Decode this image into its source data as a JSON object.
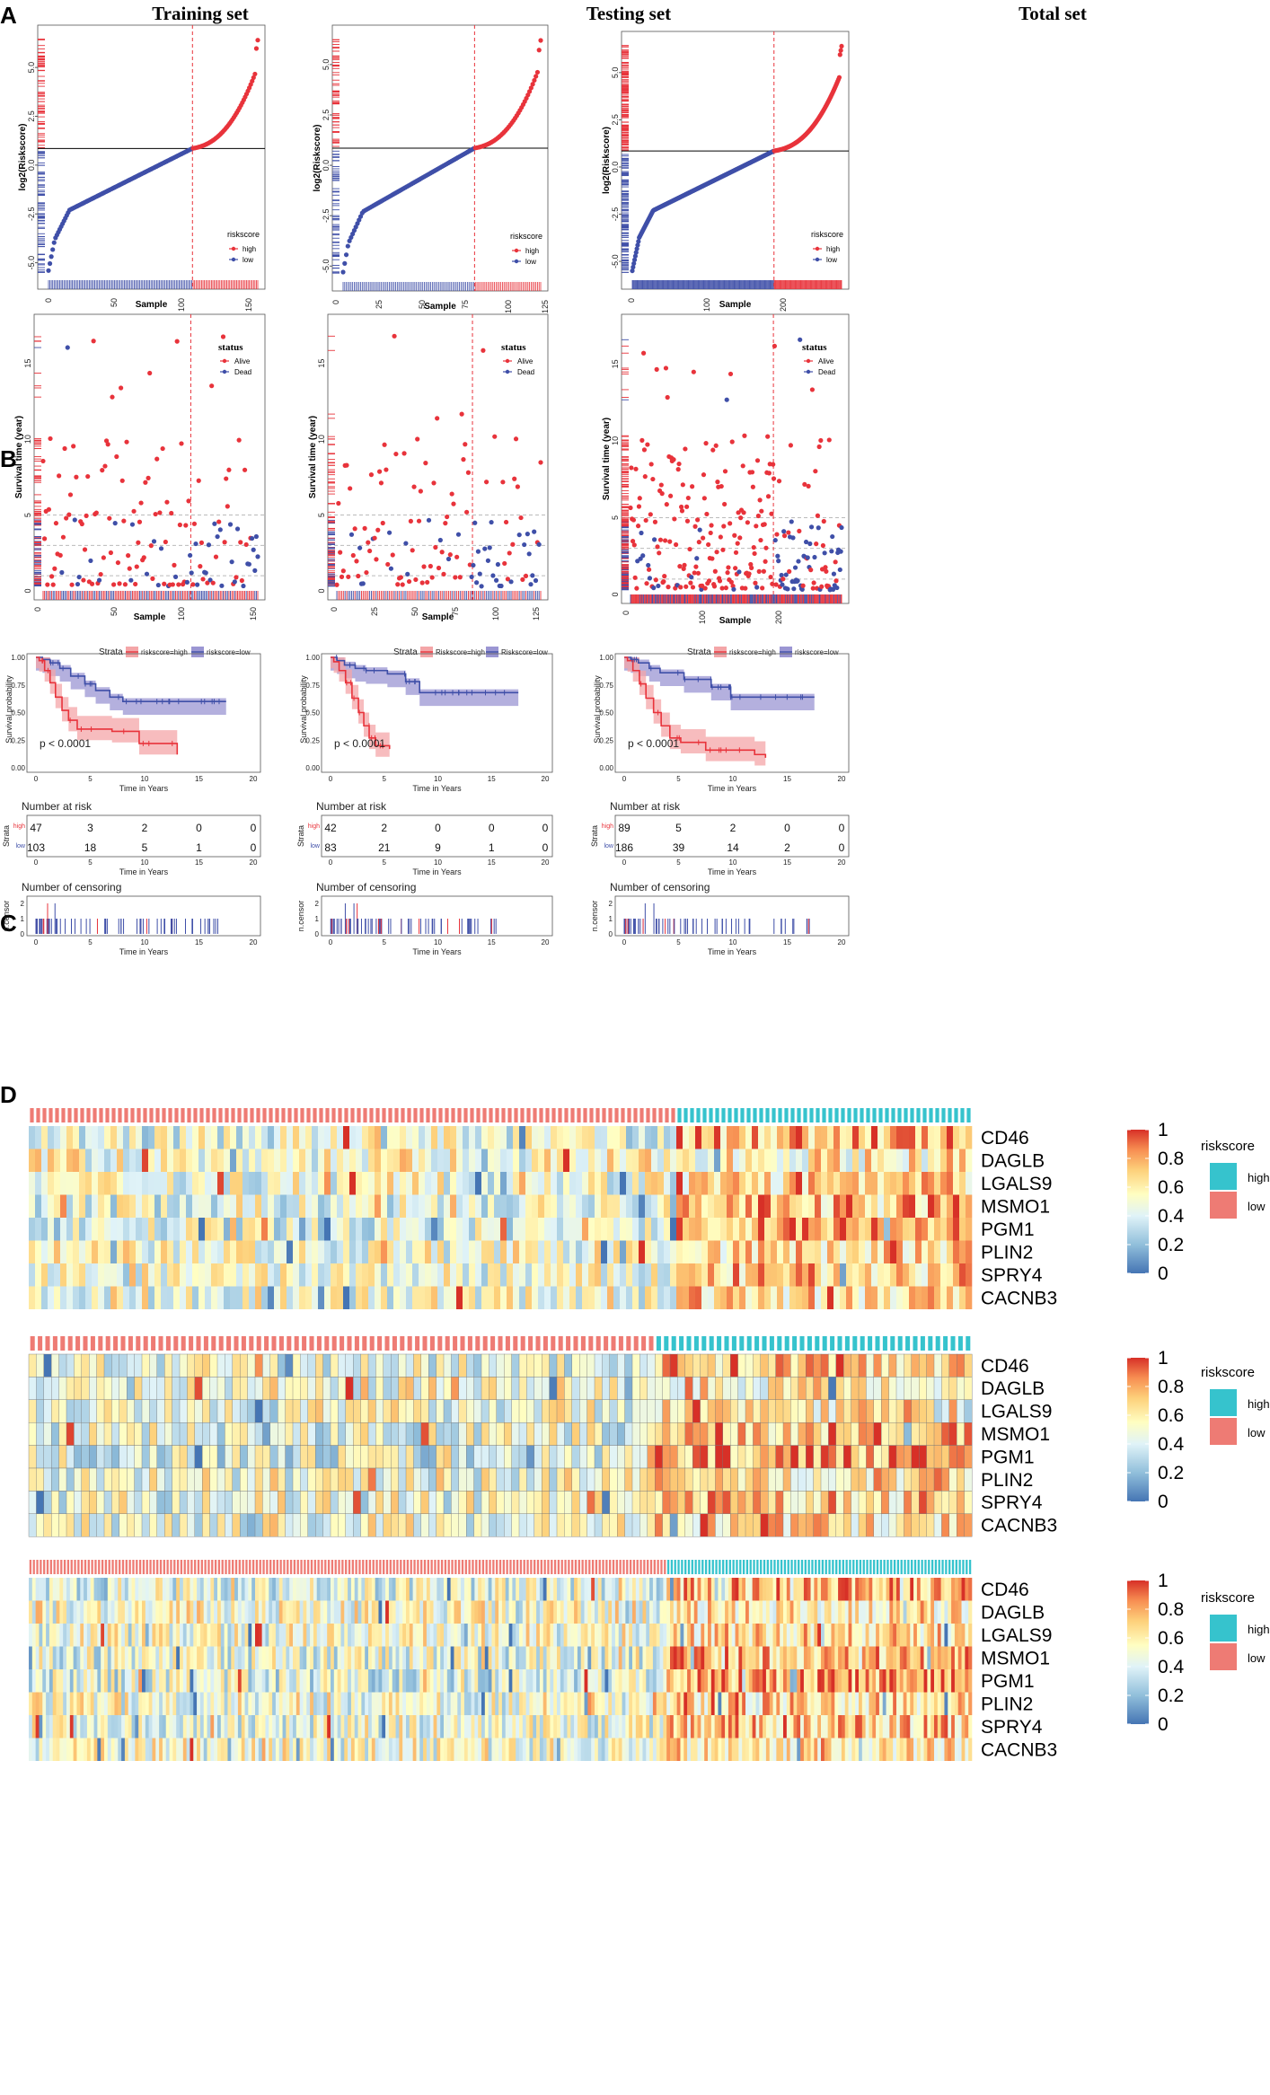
{
  "panels": {
    "a": "A",
    "b": "B",
    "c": "C",
    "d": "D"
  },
  "colors": {
    "high": "#e8333b",
    "low": "#3f4fa8",
    "km_high_fill": "#f4a6a8",
    "km_low_fill": "#9b96d3",
    "ann_high": "#36c3cd",
    "ann_low": "#ee7b74"
  },
  "chart_data": [
    {
      "id": "risk_curve",
      "type": "scatter",
      "titles": [
        "Training set",
        "Testing set",
        "Total set"
      ],
      "xlabel": "Sample",
      "ylabel": "log2(Riskscore)",
      "cutoff_log2": 0.85,
      "yticks": [
        "5.0",
        "2.5",
        "0.0",
        "-2.5",
        "-5.0"
      ],
      "xticks": [
        [
          "0",
          "50",
          "100",
          "150"
        ],
        [
          "0",
          "25",
          "50",
          "75",
          "100",
          "125"
        ],
        [
          "0",
          "100",
          "200"
        ]
      ],
      "n": [
        150,
        125,
        275
      ],
      "n_high": [
        47,
        42,
        89
      ],
      "ymin": [
        -5.8,
        -5.7,
        -5.9
      ],
      "ymax": [
        6.8,
        6.6,
        6.8
      ],
      "legend": {
        "title": "riskscore",
        "items": [
          "high",
          "low"
        ]
      }
    },
    {
      "id": "survival_status",
      "type": "scatter",
      "xlabel": "Sample",
      "ylabel": "Survival time (year)",
      "yticks": [
        "0",
        "5",
        "10",
        "15"
      ],
      "ylim": [
        0,
        18
      ],
      "reference_lines_years": [
        1,
        3,
        5
      ],
      "legend": {
        "title": "status",
        "items": [
          "Alive",
          "Dead"
        ]
      }
    },
    {
      "id": "kaplan_meier",
      "type": "line",
      "legend": {
        "title": "Strata",
        "items": [
          [
            "riskscore=high",
            "riskscore=low"
          ],
          [
            "Riskscore=high",
            "Riskscore=low"
          ],
          [
            "riskscore=high",
            "riskscore=low"
          ]
        ]
      },
      "pvalue": "p < 0.0001",
      "xlabel": "Time in Years",
      "ylabel": "Survival probability",
      "xticks": [
        "0",
        "5",
        "10",
        "15",
        "20"
      ],
      "xlim": [
        0,
        20
      ],
      "yticks": [
        "1.00",
        "0.75",
        "0.50",
        "0.25",
        "0.00"
      ],
      "ylim": [
        0,
        1
      ],
      "series": [
        {
          "high": [
            [
              0,
              1
            ],
            [
              0.3,
              0.97
            ],
            [
              0.8,
              0.88
            ],
            [
              1.3,
              0.77
            ],
            [
              1.8,
              0.64
            ],
            [
              2.4,
              0.52
            ],
            [
              3,
              0.43
            ],
            [
              3.8,
              0.35
            ],
            [
              7,
              0.33
            ],
            [
              9.5,
              0.22
            ],
            [
              13,
              0.12
            ]
          ],
          "low": [
            [
              0,
              1
            ],
            [
              0.6,
              0.98
            ],
            [
              1.3,
              0.95
            ],
            [
              2.2,
              0.9
            ],
            [
              3.2,
              0.83
            ],
            [
              4.5,
              0.76
            ],
            [
              5.5,
              0.7
            ],
            [
              6.8,
              0.64
            ],
            [
              8,
              0.6
            ],
            [
              17.5,
              0.6
            ]
          ],
          "high_end": 13,
          "low_end": 17.5
        },
        {
          "high": [
            [
              0,
              1
            ],
            [
              0.3,
              0.96
            ],
            [
              0.8,
              0.88
            ],
            [
              1.4,
              0.77
            ],
            [
              2,
              0.63
            ],
            [
              2.6,
              0.5
            ],
            [
              3.1,
              0.38
            ],
            [
              3.6,
              0.27
            ],
            [
              4.2,
              0.2
            ],
            [
              5.5,
              0.17
            ]
          ],
          "low": [
            [
              0,
              1
            ],
            [
              0.6,
              0.97
            ],
            [
              1.3,
              0.93
            ],
            [
              2.3,
              0.9
            ],
            [
              3.3,
              0.88
            ],
            [
              5.3,
              0.85
            ],
            [
              7,
              0.78
            ],
            [
              8.3,
              0.68
            ],
            [
              17.5,
              0.68
            ]
          ],
          "high_end": 5.5,
          "low_end": 17.5
        },
        {
          "high": [
            [
              0,
              1
            ],
            [
              0.3,
              0.97
            ],
            [
              0.8,
              0.88
            ],
            [
              1.4,
              0.76
            ],
            [
              2,
              0.63
            ],
            [
              2.7,
              0.5
            ],
            [
              3.4,
              0.38
            ],
            [
              4.2,
              0.27
            ],
            [
              5.2,
              0.23
            ],
            [
              7.5,
              0.16
            ],
            [
              12,
              0.12
            ],
            [
              13,
              0.09
            ]
          ],
          "low": [
            [
              0,
              1
            ],
            [
              0.6,
              0.98
            ],
            [
              1.3,
              0.95
            ],
            [
              2.3,
              0.9
            ],
            [
              3.3,
              0.86
            ],
            [
              5.5,
              0.8
            ],
            [
              8,
              0.73
            ],
            [
              9.8,
              0.64
            ],
            [
              17.5,
              0.64
            ]
          ],
          "high_end": 13,
          "low_end": 17.5
        }
      ],
      "risk_table": {
        "title": "Number at risk",
        "ylabel": "Strata",
        "row_labels": [
          "high",
          "low"
        ],
        "tables": [
          {
            "high": [
              "47",
              "3",
              "2",
              "0",
              "0"
            ],
            "low": [
              "103",
              "18",
              "5",
              "1",
              "0"
            ]
          },
          {
            "high": [
              "42",
              "2",
              "0",
              "0",
              "0"
            ],
            "low": [
              "83",
              "21",
              "9",
              "1",
              "0"
            ]
          },
          {
            "high": [
              "89",
              "5",
              "2",
              "0",
              "0"
            ],
            "low": [
              "186",
              "39",
              "14",
              "2",
              "0"
            ]
          }
        ]
      },
      "censoring": {
        "title": "Number of censoring",
        "ylabel": "n.censor",
        "yticks": [
          "2",
          "1",
          "0"
        ]
      }
    },
    {
      "id": "heatmap",
      "type": "heatmap",
      "genes": [
        "CD46",
        "DAGLB",
        "LGALS9",
        "MSMO1",
        "PGM1",
        "PLIN2",
        "SPRY4",
        "CACNB3"
      ],
      "colorbar_ticks": [
        "1",
        "0.8",
        "0.6",
        "0.4",
        "0.2",
        "0"
      ],
      "legend": {
        "title": "riskscore",
        "items": [
          "high",
          "low"
        ]
      },
      "columns": [
        150,
        125,
        275
      ],
      "low_columns": [
        103,
        83,
        186
      ]
    }
  ]
}
